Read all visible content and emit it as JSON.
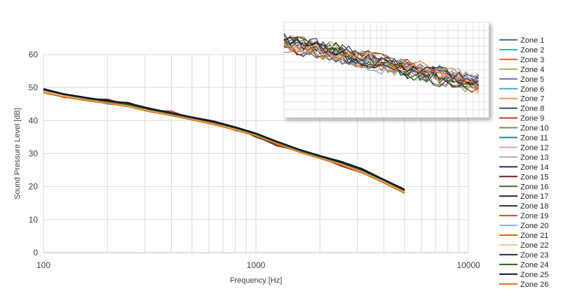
{
  "chart_data": [
    {
      "type": "line",
      "title": "",
      "xlabel": "Frequency [Hz]",
      "ylabel": "Sound Pressure Level [dB]",
      "xscale": "log",
      "xlim": [
        100,
        10000
      ],
      "ylim": [
        0,
        60
      ],
      "yticks": [
        0,
        10,
        20,
        30,
        40,
        50,
        60
      ],
      "xticks": [
        100,
        1000,
        10000
      ],
      "grid": "on",
      "legend": "right",
      "x": [
        100,
        125,
        160,
        200,
        250,
        315,
        400,
        500,
        630,
        800,
        1000,
        1250,
        1600,
        2000,
        2500,
        3150,
        4000,
        5000
      ],
      "series": [
        {
          "name": "Zone 1",
          "color": "#4472C4",
          "values": [
            49.3,
            47.8,
            46.7,
            45.8,
            45.0,
            43.6,
            42.1,
            40.7,
            39.5,
            37.8,
            35.9,
            33.5,
            31.0,
            29.1,
            27.4,
            25.1,
            21.9,
            18.9
          ]
        },
        {
          "name": "Zone 2",
          "color": "#26B8B3",
          "values": [
            49.0,
            47.6,
            46.5,
            45.4,
            44.7,
            43.1,
            41.9,
            40.6,
            39.3,
            37.5,
            35.7,
            33.3,
            30.8,
            28.9,
            27.0,
            24.8,
            21.7,
            18.6
          ]
        },
        {
          "name": "Zone 3",
          "color": "#E0643C",
          "values": [
            48.6,
            47.3,
            46.2,
            45.5,
            44.5,
            43.0,
            41.7,
            40.4,
            39.1,
            37.3,
            35.5,
            33.1,
            30.6,
            28.7,
            26.8,
            24.5,
            21.5,
            18.3
          ]
        },
        {
          "name": "Zone 4",
          "color": "#9BBB59",
          "values": [
            49.1,
            47.7,
            46.5,
            45.6,
            44.8,
            43.2,
            42.0,
            40.7,
            39.4,
            37.6,
            35.8,
            33.4,
            30.9,
            29.0,
            27.2,
            24.9,
            21.8,
            18.7
          ]
        },
        {
          "name": "Zone 5",
          "color": "#8064A2",
          "values": [
            49.5,
            48.0,
            46.8,
            45.9,
            45.1,
            43.5,
            42.2,
            40.9,
            39.6,
            37.9,
            36.0,
            33.6,
            31.1,
            29.2,
            27.5,
            25.2,
            22.0,
            19.0
          ]
        },
        {
          "name": "Zone 6",
          "color": "#4BACC6",
          "values": [
            49.2,
            47.9,
            46.7,
            45.0,
            44.6,
            43.3,
            42.3,
            41.0,
            39.7,
            36.9,
            35.9,
            33.2,
            30.7,
            28.8,
            26.9,
            24.7,
            21.6,
            18.5
          ]
        },
        {
          "name": "Zone 7",
          "color": "#F79646",
          "values": [
            48.9,
            47.5,
            46.4,
            45.3,
            44.4,
            43.1,
            41.8,
            40.5,
            39.2,
            37.4,
            35.6,
            33.2,
            30.7,
            28.8,
            26.9,
            24.6,
            21.5,
            18.4
          ]
        },
        {
          "name": "Zone 8",
          "color": "#2C4D75",
          "values": [
            49.6,
            48.1,
            46.9,
            46.0,
            45.4,
            43.7,
            42.4,
            41.0,
            39.8,
            38.0,
            36.1,
            33.7,
            31.2,
            29.3,
            27.6,
            25.3,
            22.1,
            19.1
          ]
        },
        {
          "name": "Zone 9",
          "color": "#C0392B",
          "values": [
            48.8,
            47.4,
            46.6,
            46.3,
            44.9,
            43.0,
            42.9,
            40.6,
            39.3,
            37.6,
            35.7,
            33.3,
            30.8,
            28.9,
            27.1,
            24.8,
            21.7,
            18.6
          ]
        },
        {
          "name": "Zone 10",
          "color": "#77933C",
          "values": [
            49.0,
            47.6,
            46.5,
            45.6,
            44.6,
            43.2,
            41.9,
            40.6,
            39.3,
            37.5,
            35.7,
            33.3,
            30.8,
            28.9,
            27.0,
            24.7,
            21.6,
            18.5
          ]
        },
        {
          "name": "Zone 11",
          "color": "#31859C",
          "values": [
            49.4,
            47.9,
            46.7,
            45.8,
            45.0,
            43.5,
            42.1,
            40.8,
            39.5,
            37.8,
            35.9,
            33.5,
            31.0,
            29.1,
            27.3,
            25.0,
            21.9,
            18.8
          ]
        },
        {
          "name": "Zone 12",
          "color": "#E6A0A0",
          "values": [
            48.7,
            47.4,
            46.3,
            45.5,
            44.5,
            43.0,
            41.7,
            40.4,
            39.2,
            37.4,
            35.6,
            33.1,
            30.6,
            28.8,
            26.8,
            24.5,
            21.4,
            18.3
          ]
        },
        {
          "name": "Zone 13",
          "color": "#B3A2C7",
          "values": [
            49.2,
            47.8,
            46.6,
            45.7,
            44.8,
            43.3,
            42.0,
            40.7,
            39.4,
            37.7,
            35.8,
            33.4,
            30.9,
            29.0,
            27.2,
            24.9,
            21.8,
            18.7
          ]
        },
        {
          "name": "Zone 14",
          "color": "#1F3864",
          "values": [
            49.5,
            48.1,
            46.8,
            45.9,
            45.2,
            43.6,
            42.2,
            40.9,
            39.6,
            37.9,
            36.0,
            33.6,
            31.1,
            29.2,
            27.4,
            25.2,
            22.0,
            19.0
          ]
        },
        {
          "name": "Zone 15",
          "color": "#632523",
          "values": [
            48.9,
            47.0,
            46.5,
            46.5,
            44.7,
            42.7,
            42.0,
            40.6,
            39.3,
            37.6,
            35.3,
            32.4,
            30.8,
            28.9,
            26.3,
            24.2,
            21.6,
            18.5
          ]
        },
        {
          "name": "Zone 16",
          "color": "#4F6228",
          "values": [
            49.1,
            47.7,
            46.5,
            45.6,
            44.7,
            43.2,
            42.0,
            40.6,
            39.4,
            37.6,
            35.8,
            33.3,
            30.9,
            29.0,
            27.1,
            24.8,
            21.7,
            18.6
          ]
        },
        {
          "name": "Zone 17",
          "color": "#262626",
          "values": [
            49.3,
            47.8,
            46.7,
            45.7,
            45.5,
            43.4,
            42.1,
            40.8,
            39.5,
            37.8,
            35.0,
            32.8,
            31.0,
            29.0,
            26.7,
            24.6,
            21.8,
            18.8
          ]
        },
        {
          "name": "Zone 18",
          "color": "#17375E",
          "values": [
            49.7,
            48.1,
            47.0,
            46.1,
            45.3,
            43.8,
            42.4,
            41.1,
            39.9,
            38.1,
            36.2,
            33.8,
            31.3,
            29.4,
            27.7,
            25.5,
            22.2,
            19.2
          ]
        },
        {
          "name": "Zone 19",
          "color": "#C55A11",
          "values": [
            48.6,
            47.2,
            46.1,
            45.4,
            44.3,
            42.9,
            41.6,
            40.3,
            39.0,
            37.2,
            35.4,
            33.0,
            30.5,
            28.6,
            26.7,
            24.4,
            21.3,
            18.2
          ]
        },
        {
          "name": "Zone 20",
          "color": "#8EB4E3",
          "values": [
            49.0,
            47.7,
            46.6,
            45.2,
            44.6,
            43.2,
            42.1,
            40.8,
            39.5,
            37.0,
            35.8,
            33.3,
            30.8,
            28.9,
            27.0,
            24.8,
            21.7,
            18.6
          ]
        },
        {
          "name": "Zone 21",
          "color": "#E26B0A",
          "values": [
            48.5,
            47.2,
            46.1,
            45.3,
            44.3,
            42.8,
            41.6,
            40.3,
            38.9,
            37.2,
            35.4,
            33.0,
            30.5,
            28.6,
            26.7,
            24.3,
            21.2,
            18.1
          ]
        },
        {
          "name": "Zone 22",
          "color": "#FAC090",
          "values": [
            48.8,
            47.5,
            46.4,
            45.4,
            44.4,
            43.0,
            41.8,
            40.5,
            39.2,
            37.4,
            35.6,
            33.2,
            30.7,
            28.7,
            26.9,
            24.6,
            21.5,
            18.4
          ]
        },
        {
          "name": "Zone 23",
          "color": "#2E2E4D",
          "values": [
            49.4,
            48.0,
            46.8,
            45.8,
            45.1,
            43.5,
            42.2,
            40.9,
            39.6,
            37.8,
            36.0,
            33.5,
            31.0,
            29.1,
            27.4,
            25.1,
            21.9,
            18.9
          ]
        },
        {
          "name": "Zone 24",
          "color": "#3A5F0B",
          "values": [
            49.2,
            47.8,
            46.6,
            45.7,
            44.8,
            43.3,
            42.0,
            40.7,
            39.4,
            37.7,
            35.8,
            33.4,
            30.9,
            29.0,
            27.2,
            24.9,
            21.8,
            18.7
          ]
        },
        {
          "name": "Zone 25",
          "color": "#0D0D26",
          "values": [
            49.6,
            48.0,
            46.9,
            46.0,
            45.3,
            43.6,
            42.3,
            41.0,
            39.7,
            37.9,
            36.1,
            33.7,
            31.2,
            29.3,
            27.5,
            25.3,
            22.1,
            19.1
          ]
        },
        {
          "name": "Zone 26",
          "color": "#E46C0A",
          "values": [
            48.4,
            47.1,
            46.0,
            45.2,
            44.2,
            42.7,
            41.5,
            40.2,
            38.8,
            37.1,
            35.3,
            32.9,
            30.4,
            28.5,
            26.6,
            24.2,
            21.1,
            18.0
          ]
        }
      ]
    },
    {
      "type": "line",
      "title": "",
      "xscale": "log",
      "xlim": [
        100,
        10000
      ],
      "ylim": [
        0,
        60
      ],
      "grid": "on",
      "legend": "none",
      "series_count": 26,
      "range_hint": "inset plot of zone spectra, unlabeled"
    }
  ]
}
